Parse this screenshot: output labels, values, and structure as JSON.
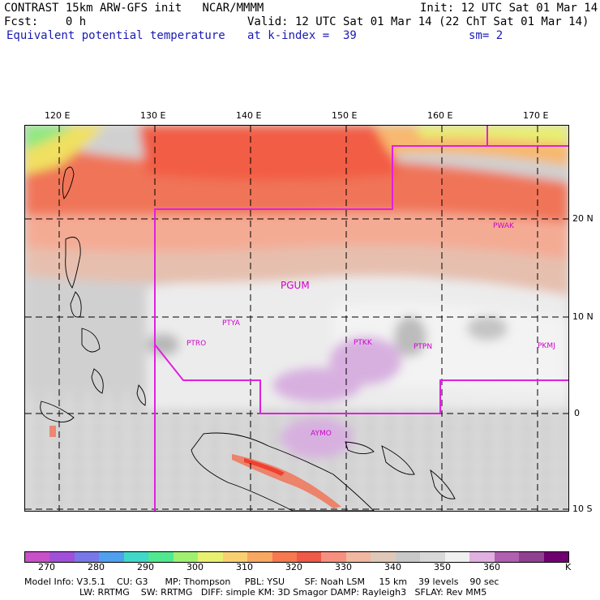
{
  "header": {
    "model": "CONTRAST 15km ARW-GFS init",
    "org": "NCAR/MMMM",
    "init": "Init: 12 UTC Sat 01 Mar 14",
    "fcst_label": "Fcst:",
    "fcst_value": "0 h",
    "valid": "Valid: 12 UTC Sat 01 Mar 14 (22 ChT Sat 01 Mar 14)",
    "field": "Equivalent potential temperature",
    "level": "at k-index =  39",
    "smoothing": "sm= 2"
  },
  "axes": {
    "lon_ticks": [
      "120 E",
      "130 E",
      "140 E",
      "150 E",
      "160 E",
      "170 E"
    ],
    "lat_ticks": [
      "20 N",
      "10 N",
      "0",
      "10 S"
    ]
  },
  "stations": [
    "PKMJ",
    "PTRO",
    "PTYA",
    "PTKK",
    "PTPN",
    "PKMJ",
    "PGUM",
    "AYMO"
  ],
  "station_labels": {
    "wake": "PWAK",
    "palau": "PTRO",
    "yap": "PTYA",
    "chuuk": "PTKK",
    "pohnpei": "PTPN",
    "majuro": "PKMJ",
    "guam": "PGUM",
    "momote": "AYMO"
  },
  "colorbar": {
    "labels": [
      "270",
      "280",
      "290",
      "300",
      "310",
      "320",
      "330",
      "340",
      "350",
      "360"
    ],
    "unit": "K",
    "colors": [
      "#c850c8",
      "#a050d8",
      "#7878e8",
      "#50a0f0",
      "#40d8c8",
      "#50e890",
      "#a0f070",
      "#e8f070",
      "#f8d070",
      "#f8a860",
      "#f87850",
      "#f05848",
      "#f89080",
      "#f0b8a0",
      "#e0c8b8",
      "#c8c8c8",
      "#d8d8d8",
      "#f0f0f0",
      "#e0b0e0",
      "#b060b0",
      "#904090",
      "#700070"
    ]
  },
  "footer": {
    "line1": "Model Info: V3.5.1    CU: G3      MP: Thompson     PBL: YSU       SF: Noah LSM     15 km    39 levels    90 sec",
    "line2": "LW: RRTMG    SW: RRTMG   DIFF: simple KM: 3D Smagor DAMP: Rayleigh3   SFLAY: Rev MM5"
  }
}
